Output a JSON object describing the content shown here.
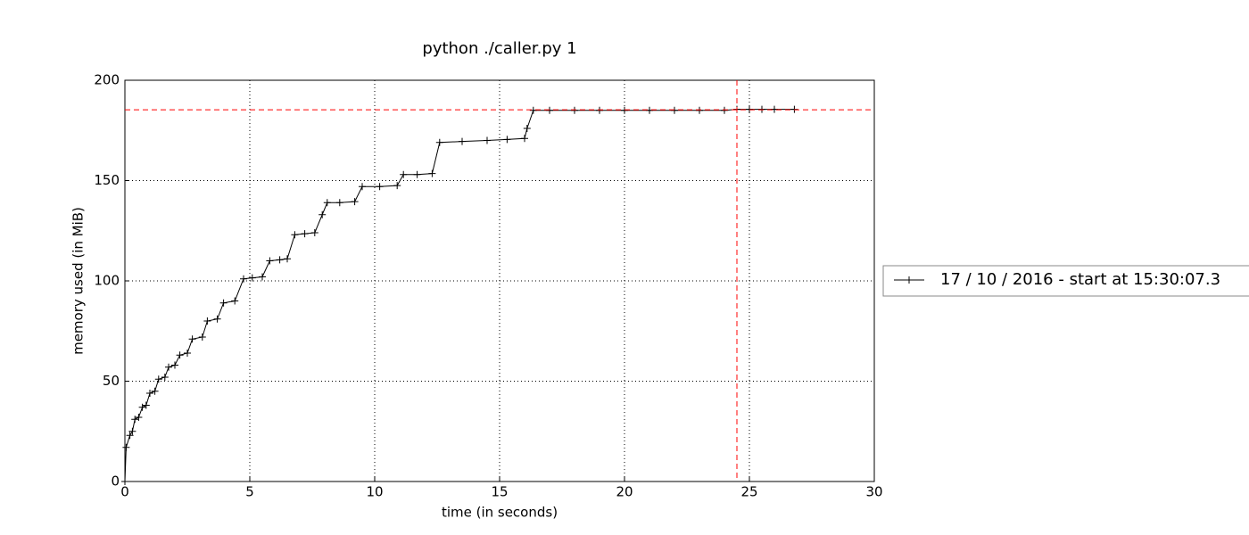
{
  "chart_data": {
    "type": "line",
    "title": "python ./caller.py 1",
    "x_label": "time (in seconds)",
    "y_label": "memory used (in MiB)",
    "xlim": [
      0,
      30
    ],
    "xticks": [
      0,
      5,
      10,
      15,
      20,
      25,
      30
    ],
    "ylim": [
      0,
      200
    ],
    "yticks": [
      0,
      50,
      100,
      150,
      200
    ],
    "grid": true,
    "legend_position": "outside right",
    "x": [
      0,
      0.05,
      0.2,
      0.3,
      0.4,
      0.55,
      0.7,
      0.85,
      1.0,
      1.2,
      1.35,
      1.6,
      1.75,
      2.0,
      2.2,
      2.5,
      2.7,
      3.1,
      3.3,
      3.7,
      3.95,
      4.4,
      4.75,
      5.1,
      5.5,
      5.8,
      6.2,
      6.5,
      6.8,
      7.2,
      7.6,
      7.9,
      8.1,
      8.6,
      9.2,
      9.5,
      10.2,
      10.9,
      11.15,
      11.7,
      12.3,
      12.6,
      13.5,
      14.5,
      15.3,
      16.0,
      16.1,
      16.35,
      17,
      18,
      19,
      20,
      21,
      22,
      23,
      24,
      24.5,
      25,
      25.5,
      26,
      26.8
    ],
    "series": [
      {
        "name": "17 / 10 / 2016 - start at 15:30:07.3",
        "color": "#000000",
        "values": [
          0,
          17,
          23,
          25,
          31,
          32,
          37,
          38,
          44,
          45,
          51,
          52,
          57,
          58,
          63,
          64,
          71,
          72,
          80,
          81,
          89,
          90,
          101,
          101.5,
          102,
          110,
          110.5,
          111,
          123,
          123.5,
          124,
          133,
          139,
          139,
          139.5,
          147,
          147,
          147.5,
          153,
          153,
          153.5,
          169,
          169.5,
          170,
          170.5,
          171,
          176,
          185,
          185,
          185,
          185,
          185,
          185,
          185,
          185,
          185,
          185.5,
          185.5,
          185.5,
          185.5,
          185.5
        ]
      }
    ],
    "reference_lines": {
      "x": 24.5,
      "y": 185.3,
      "color": "#ff0000"
    }
  }
}
